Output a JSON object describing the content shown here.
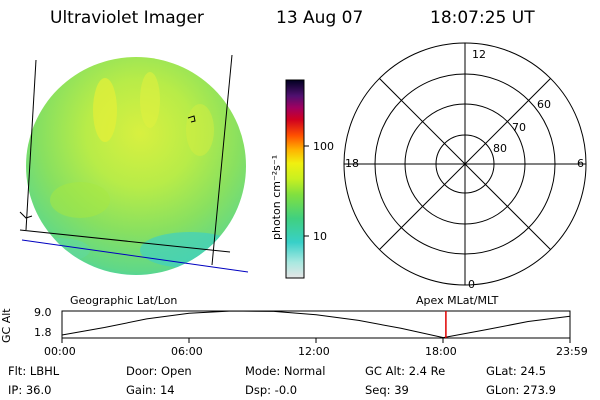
{
  "header": {
    "instrument": "Ultraviolet Imager",
    "date": "13 Aug 07",
    "time": "18:07:25 UT"
  },
  "colorbar": {
    "label": "photon cm⁻²s⁻¹",
    "ticks": [
      "100",
      "10"
    ]
  },
  "polar_plot": {
    "mlt_labels": [
      "12",
      "18",
      "6",
      "0"
    ],
    "lat_labels": [
      "60",
      "70",
      "80"
    ]
  },
  "image_panel": {
    "label": "Geographic Lat/Lon",
    "texture_icon": "auroral-image-texture"
  },
  "timeline": {
    "right_label": "Apex MLat/MLT",
    "ylabel": "GC Alt",
    "y_ticks": [
      "9.0",
      "1.8"
    ],
    "x_ticks": [
      "00:00",
      "06:00",
      "12:00",
      "18:00",
      "23:59"
    ],
    "marker_color": "#e00000",
    "marker_time_hours": 18.12
  },
  "chart_data": {
    "type": "line",
    "title": "",
    "xlabel": "",
    "ylabel": "GC Alt",
    "x": [
      0,
      2,
      4,
      6,
      8,
      10,
      12,
      14,
      16,
      18,
      20,
      22,
      23.98
    ],
    "series": [
      {
        "values": [
          2.6,
          4.6,
          6.9,
          8.4,
          9.0,
          8.9,
          8.0,
          6.5,
          4.4,
          1.9,
          4.0,
          6.2,
          7.6
        ]
      }
    ],
    "xlim": [
      0,
      23.98
    ],
    "ylim": [
      1.8,
      9.0
    ],
    "grid": false
  },
  "status": {
    "flt": "Flt: LBHL",
    "ip": "IP: 36.0",
    "door": "Door: Open",
    "gain": "Gain: 14",
    "mode": "Mode: Normal",
    "dsp": "Dsp:   -0.0",
    "gcalt": "GC Alt: 2.4 Re",
    "seq": "Seq: 39",
    "glat": "GLat:  24.5",
    "glon": "GLon: 273.9"
  }
}
